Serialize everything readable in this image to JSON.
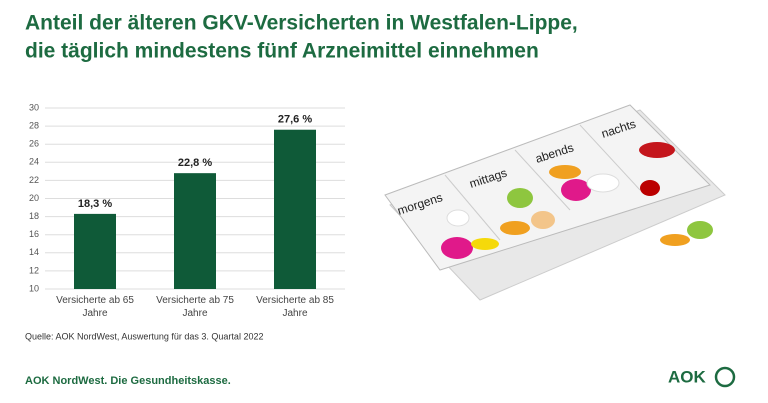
{
  "title": [
    "Anteil der älteren GKV-Versicherten in Westfalen-Lippe,",
    "die täglich mindestens fünf Arzneimittel einnehmen"
  ],
  "chart_data": {
    "type": "bar",
    "categories": [
      "Versicherte ab 65 Jahre",
      "Versicherte ab 75 Jahre",
      "Versicherte ab 85 Jahre"
    ],
    "values": [
      18.3,
      22.8,
      27.6
    ],
    "value_labels": [
      "18,3 %",
      "22,8 %",
      "27,6 %"
    ],
    "color": "#0f5a38",
    "ylim": [
      10,
      30
    ],
    "yticks": [
      10,
      12,
      14,
      16,
      18,
      20,
      22,
      24,
      26,
      28,
      30
    ],
    "grid": true
  },
  "source": "Quelle: AOK NordWest, Auswertung für das 3. Quartal 2022",
  "illustration": {
    "labels": [
      "morgens",
      "mittags",
      "abends",
      "nachts"
    ]
  },
  "footer": {
    "slogan": "AOK NordWest. Die Gesundheitskasse.",
    "logo": "AOK"
  }
}
